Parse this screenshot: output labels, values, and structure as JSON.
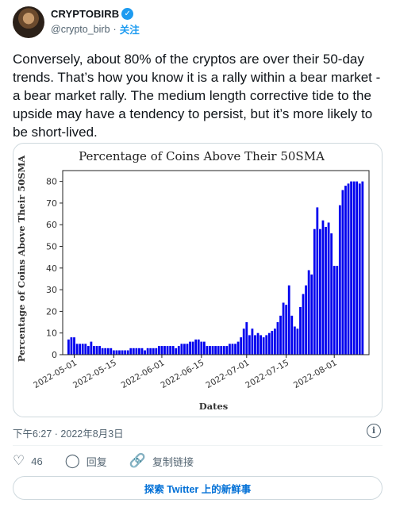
{
  "author": {
    "display_name": "CRYPTOBIRB",
    "handle": "@crypto_birb",
    "separator": "·",
    "follow_label": "关注",
    "verified_icon": "verified-badge-icon"
  },
  "tweet": {
    "text": "Conversely, about 80% of the cryptos are over their 50-day trends. That’s how you know it is a rally within a bear market - a bear market rally. The medium length corrective tide to the upside may have a tendency to persist, but it’s more likely to be short-lived.",
    "timestamp": "下午6:27 · 2022年8月3日"
  },
  "actions": {
    "like_count": "46",
    "reply_label": "回复",
    "copy_link_label": "复制链接"
  },
  "explore_label": "探索 Twitter 上的新鲜事",
  "colors": {
    "bar": "#0000ee",
    "accent": "#1d9bf0",
    "link": "#006fd6"
  },
  "chart_data": {
    "type": "bar",
    "title": "Percentage of Coins Above Their 50SMA",
    "xlabel": "Dates",
    "ylabel": "Percentage of Coins Above Their 50SMA",
    "ylim": [
      0,
      85
    ],
    "yticks": [
      0,
      10,
      20,
      30,
      40,
      50,
      60,
      70,
      80
    ],
    "xticks": [
      "2022-05-01",
      "2022-05-15",
      "2022-06-01",
      "2022-06-15",
      "2022-07-01",
      "2022-07-15",
      "2022-08-01"
    ],
    "grid": false,
    "start_date": "2022-04-29",
    "values": [
      7,
      8,
      8,
      5,
      5,
      5,
      5,
      4,
      6,
      4,
      4,
      4,
      3,
      3,
      3,
      3,
      2,
      2,
      2,
      2,
      2,
      2,
      3,
      3,
      3,
      3,
      3,
      2,
      3,
      3,
      3,
      3,
      4,
      4,
      4,
      4,
      4,
      4,
      3,
      4,
      5,
      5,
      5,
      6,
      6,
      7,
      7,
      6,
      6,
      4,
      4,
      4,
      4,
      4,
      4,
      4,
      4,
      5,
      5,
      5,
      6,
      8,
      12,
      15,
      9,
      12,
      9,
      10,
      9,
      8,
      9,
      10,
      11,
      12,
      15,
      18,
      24,
      23,
      32,
      18,
      13,
      12,
      22,
      28,
      32,
      39,
      37,
      58,
      68,
      58,
      62,
      59,
      61,
      56,
      41,
      41,
      69,
      76,
      78,
      79,
      80,
      80,
      80,
      79,
      80
    ]
  }
}
